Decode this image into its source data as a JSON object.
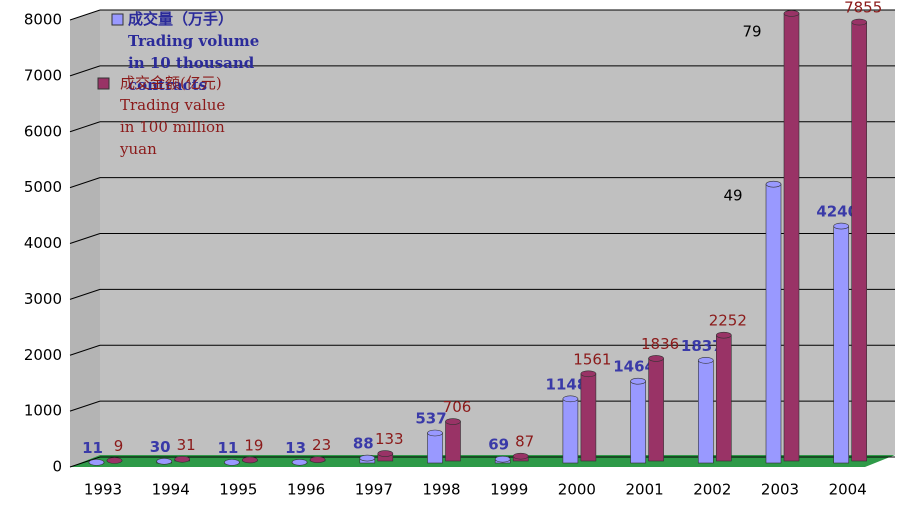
{
  "chart_data": {
    "type": "bar",
    "categories": [
      "1993",
      "1994",
      "1995",
      "1996",
      "1997",
      "1998",
      "1999",
      "2000",
      "2001",
      "2002",
      "2003",
      "2004"
    ],
    "series": [
      {
        "name": "成交量（万手）Trading volume in 10 thousand contracts",
        "color": "#9999ff",
        "values": [
          11,
          30,
          11,
          13,
          88,
          537,
          69,
          1148,
          1464,
          1837,
          4990,
          4240
        ],
        "value_labels": [
          "11",
          "30",
          "11",
          "13",
          "88",
          "537",
          "69",
          "1148",
          "1464",
          "1837",
          null,
          "4240"
        ]
      },
      {
        "name": "成交金额(亿元)Trading value in 100 million yuan",
        "color": "#993366",
        "values": [
          9,
          31,
          19,
          23,
          133,
          706,
          87,
          1561,
          1836,
          2252,
          8010,
          7855
        ],
        "value_labels": [
          "9",
          "31",
          "19",
          "23",
          "133",
          "706",
          "87",
          "1561",
          "1836",
          "2252",
          null,
          "7855"
        ]
      }
    ],
    "annotations": [
      "49",
      "79"
    ],
    "ylim": [
      0,
      8000
    ],
    "yticks": [
      0,
      1000,
      2000,
      3000,
      4000,
      5000,
      6000,
      7000,
      8000
    ],
    "grid": true
  }
}
